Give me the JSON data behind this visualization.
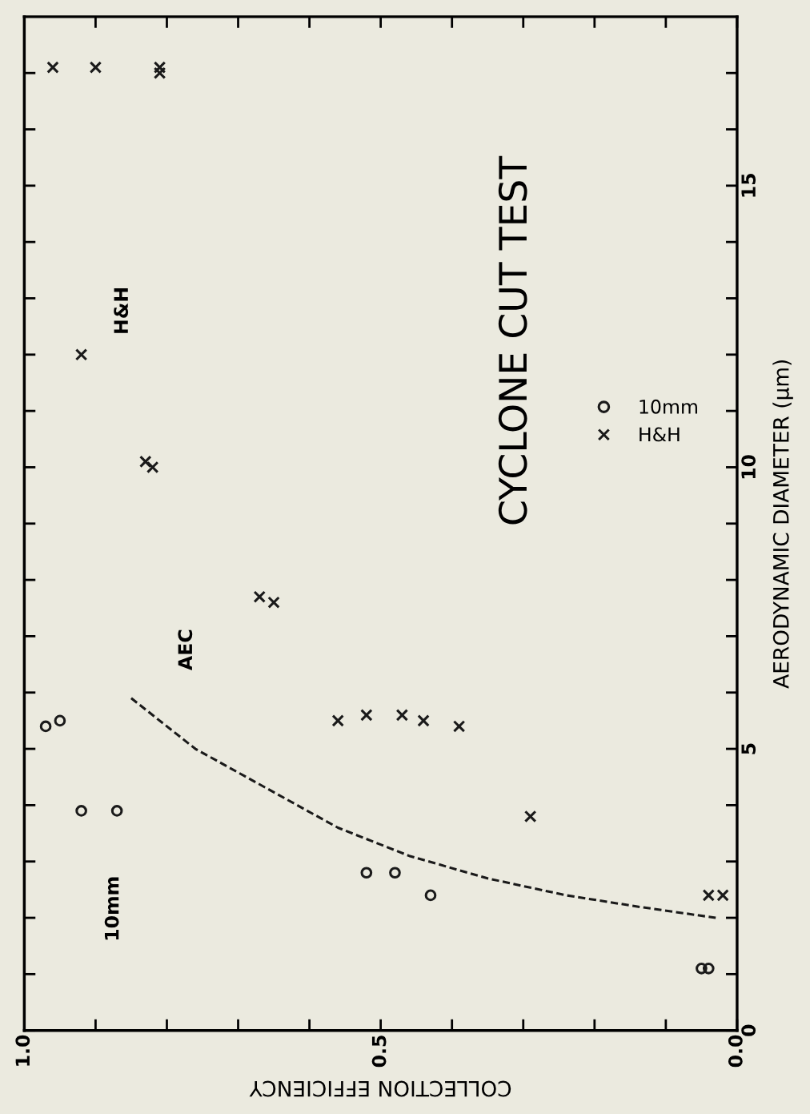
{
  "chart_data": {
    "type": "scatter",
    "title": "CYCLONE CUT TEST",
    "xlabel": "COLLECTION EFFICIENCY",
    "ylabel": "AERODYNAMIC DIAMETER (µm)",
    "xlim": [
      1.0,
      0.0
    ],
    "xticks": [
      {
        "value": 1,
        "label": "1.0"
      },
      {
        "value": 0.9,
        "label": null
      },
      {
        "value": 0.8,
        "label": null
      },
      {
        "value": 0.7,
        "label": null
      },
      {
        "value": 0.6,
        "label": null
      },
      0.5,
      {
        "value": 0.4,
        "label": null
      },
      {
        "value": 0.3,
        "label": null
      },
      {
        "value": 0.2,
        "label": null
      },
      {
        "value": 0.1,
        "label": null
      },
      {
        "value": 0,
        "label": "0.0"
      }
    ],
    "ylim": [
      0,
      18
    ],
    "yticks": [
      0,
      {
        "value": 1,
        "label": null
      },
      {
        "value": 2,
        "label": null
      },
      {
        "value": 3,
        "label": null
      },
      {
        "value": 4,
        "label": null
      },
      5,
      {
        "value": 6,
        "label": null
      },
      {
        "value": 7,
        "label": null
      },
      {
        "value": 8,
        "label": null
      },
      {
        "value": 9,
        "label": null
      },
      10,
      {
        "value": 11,
        "label": null
      },
      {
        "value": 12,
        "label": null
      },
      {
        "value": 13,
        "label": null
      },
      {
        "value": 14,
        "label": null
      },
      15,
      {
        "value": 16,
        "label": null
      },
      {
        "value": 17,
        "label": null
      }
    ],
    "grid": false,
    "legend": "right",
    "annotations": [
      "10mm",
      "H&H"
    ],
    "series": [
      {
        "name": "10mm",
        "marker": "circle",
        "color": "#1a1a1a",
        "x": [
          0.97,
          0.95,
          0.92,
          0.87,
          0.52,
          0.48,
          0.43,
          0.05,
          0.04
        ],
        "values": [
          5.4,
          5.5,
          3.9,
          3.9,
          2.8,
          2.8,
          2.4,
          1.1,
          1.1
        ]
      },
      {
        "name": "H&H",
        "marker": "cross",
        "color": "#1a1a1a",
        "x": [
          0.96,
          0.9,
          0.81,
          0.81,
          0.92,
          0.83,
          0.82,
          0.67,
          0.65,
          0.56,
          0.52,
          0.47,
          0.44,
          0.39,
          0.29,
          0.04,
          0.02
        ],
        "values": [
          17.1,
          17.1,
          17.1,
          17.0,
          12.0,
          10.1,
          10.0,
          7.7,
          7.6,
          5.5,
          5.6,
          5.6,
          5.5,
          5.4,
          3.8,
          2.4,
          2.4
        ]
      },
      {
        "name": "AEC",
        "type": "line",
        "line_style": "dashed",
        "marker": "none",
        "color": "#1a1a1a",
        "x": [
          0.85,
          0.76,
          0.66,
          0.56,
          0.46,
          0.35,
          0.24,
          0.14,
          0.03
        ],
        "values": [
          5.9,
          5.0,
          4.3,
          3.6,
          3.1,
          2.7,
          2.4,
          2.2,
          2.0
        ]
      }
    ]
  }
}
